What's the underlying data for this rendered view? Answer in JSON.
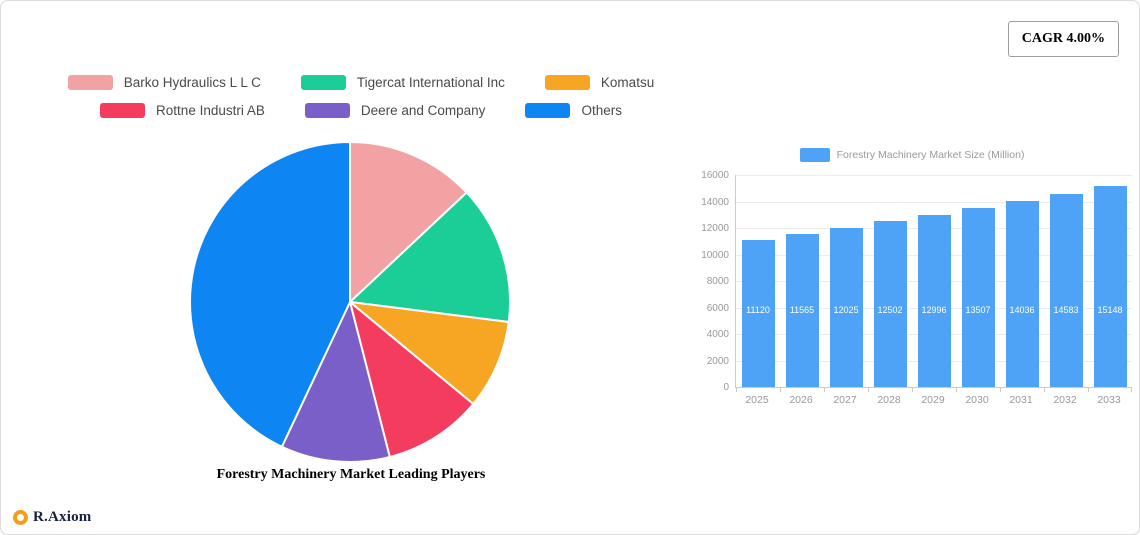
{
  "cagr": {
    "label": "CAGR 4.00%"
  },
  "legend": {
    "items": [
      {
        "label": "Barko Hydraulics L L C",
        "color": "#F2A2A2"
      },
      {
        "label": "Tigercat International Inc",
        "color": "#1BCE97"
      },
      {
        "label": "Komatsu",
        "color": "#F6A623"
      },
      {
        "label": "Rottne Industri AB",
        "color": "#F43D5E"
      },
      {
        "label": "Deere and Company",
        "color": "#7A5FC8"
      },
      {
        "label": "Others",
        "color": "#0D85F2"
      }
    ]
  },
  "chart_data": [
    {
      "type": "pie",
      "title": "Forestry Machinery Market Leading Players",
      "labels": [
        "Barko Hydraulics L L C",
        "Tigercat International Inc",
        "Komatsu",
        "Rottne Industri AB",
        "Deere and Company",
        "Others"
      ],
      "values": [
        13,
        14,
        9,
        10,
        11,
        43
      ],
      "colors": [
        "#F2A2A2",
        "#1BCE97",
        "#F6A623",
        "#F43D5E",
        "#7A5FC8",
        "#0D85F2"
      ],
      "start_angle_deg": 0,
      "direction": "clockwise",
      "legend_position": "top"
    },
    {
      "type": "bar",
      "series_name": "Forestry Machinery Market Size (Million)",
      "categories": [
        "2025",
        "2026",
        "2027",
        "2028",
        "2029",
        "2030",
        "2031",
        "2032",
        "2033"
      ],
      "values": [
        11120,
        11565,
        12025,
        12502,
        12996,
        13507,
        14036,
        14583,
        15148
      ],
      "ylim": [
        0,
        16000
      ],
      "y_ticks": [
        0,
        2000,
        4000,
        6000,
        8000,
        10000,
        12000,
        14000,
        16000
      ],
      "bar_color": "#4EA3F6",
      "grid": true,
      "value_labels": "inside-white",
      "legend_position": "top"
    }
  ],
  "logo": {
    "text": "R.Axiom"
  }
}
